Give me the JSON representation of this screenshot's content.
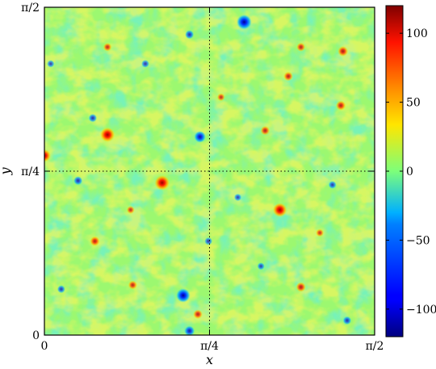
{
  "chart_data": {
    "type": "heatmap",
    "title": "",
    "xlabel": "x",
    "ylabel": "y",
    "x_ticks": [
      "0",
      "π/4",
      "π/2"
    ],
    "y_ticks": [
      "0",
      "π/4",
      "π/2"
    ],
    "xlim": [
      0,
      1.5708
    ],
    "ylim": [
      0,
      1.5708
    ],
    "colorbar": {
      "range": [
        -120,
        120
      ],
      "ticks": [
        100,
        50,
        0,
        -50,
        -100
      ],
      "tick_labels": [
        "100",
        "50",
        "0",
        "−50",
        "−100"
      ],
      "colormap": "jet"
    },
    "background_value": 0,
    "grid": "dotted lines at π/4",
    "vortices": [
      {
        "x": 0.95,
        "y": 1.5,
        "value": -110
      },
      {
        "x": 0.3,
        "y": 0.96,
        "value": 105
      },
      {
        "x": 0.74,
        "y": 0.95,
        "value": -75
      },
      {
        "x": 0.0,
        "y": 0.86,
        "value": 85
      },
      {
        "x": 0.56,
        "y": 0.73,
        "value": 110
      },
      {
        "x": 1.12,
        "y": 0.6,
        "value": 100
      },
      {
        "x": 0.16,
        "y": 0.74,
        "value": -45
      },
      {
        "x": 0.66,
        "y": 0.19,
        "value": -100
      },
      {
        "x": 1.22,
        "y": 0.23,
        "value": 55
      },
      {
        "x": 1.42,
        "y": 1.36,
        "value": 60
      },
      {
        "x": 0.24,
        "y": 0.45,
        "value": 55
      },
      {
        "x": 0.69,
        "y": 0.02,
        "value": -60
      },
      {
        "x": 0.73,
        "y": 0.1,
        "value": 50
      },
      {
        "x": 0.42,
        "y": 0.24,
        "value": 45
      },
      {
        "x": 0.23,
        "y": 1.04,
        "value": -40
      },
      {
        "x": 1.05,
        "y": 0.98,
        "value": 50
      },
      {
        "x": 1.22,
        "y": 1.38,
        "value": 45
      },
      {
        "x": 0.69,
        "y": 1.44,
        "value": -45
      },
      {
        "x": 1.37,
        "y": 0.72,
        "value": -35
      },
      {
        "x": 1.44,
        "y": 0.07,
        "value": -40
      },
      {
        "x": 0.3,
        "y": 1.38,
        "value": 40
      },
      {
        "x": 1.16,
        "y": 1.24,
        "value": 50
      },
      {
        "x": 0.78,
        "y": 0.45,
        "value": -35
      },
      {
        "x": 0.03,
        "y": 1.3,
        "value": -30
      },
      {
        "x": 0.84,
        "y": 1.14,
        "value": 35
      },
      {
        "x": 1.41,
        "y": 1.1,
        "value": 55
      },
      {
        "x": 0.48,
        "y": 1.3,
        "value": -35
      },
      {
        "x": 0.92,
        "y": 0.66,
        "value": -30
      },
      {
        "x": 0.08,
        "y": 0.22,
        "value": -35
      },
      {
        "x": 0.41,
        "y": 0.6,
        "value": 35
      },
      {
        "x": 1.03,
        "y": 0.33,
        "value": -30
      },
      {
        "x": 1.31,
        "y": 0.49,
        "value": 35
      }
    ]
  }
}
